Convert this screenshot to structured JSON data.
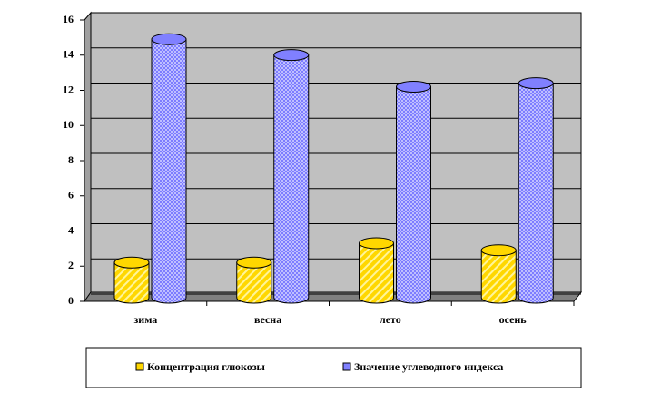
{
  "chart_data": {
    "type": "bar",
    "categories": [
      "зима",
      "весна",
      "лето",
      "осень"
    ],
    "series": [
      {
        "name": "Концентрация глюкозы",
        "color": "#ffd700",
        "values": [
          2.0,
          2.0,
          3.1,
          2.7
        ]
      },
      {
        "name": "Значение углеводного индекса",
        "color": "#8080ff",
        "values": [
          14.7,
          13.8,
          12.0,
          12.2
        ]
      }
    ],
    "ylim": [
      0,
      16
    ],
    "yticks": [
      0,
      2,
      4,
      6,
      8,
      10,
      12,
      14,
      16
    ],
    "grid": true,
    "legend": "bottom"
  }
}
